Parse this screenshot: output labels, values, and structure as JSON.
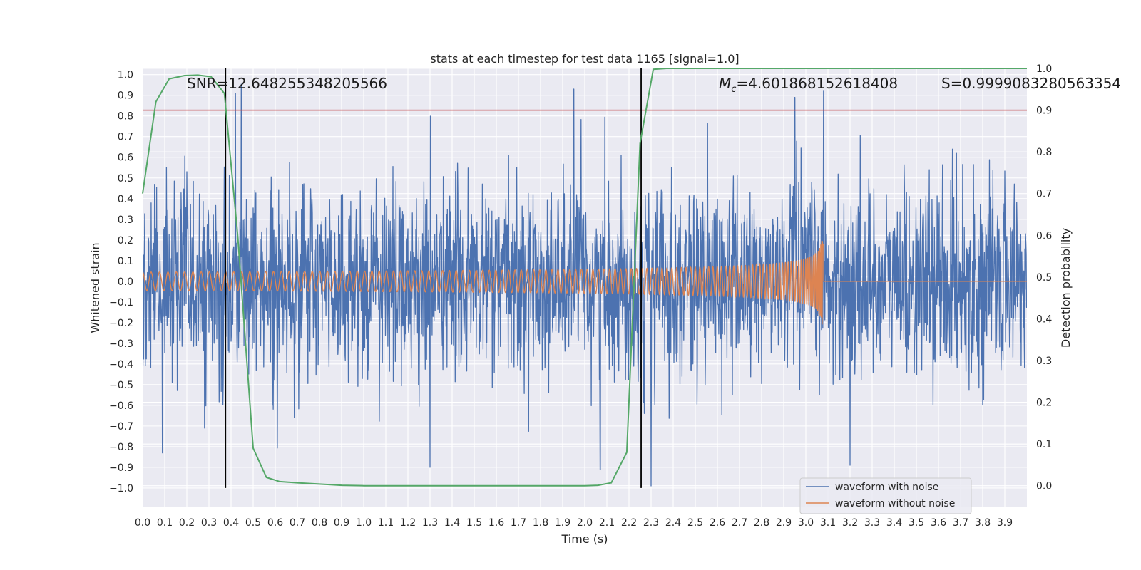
{
  "chart_data": {
    "type": "line",
    "title": "stats at each timestep for test data 1165 [signal=1.0]",
    "xlabel": "Time (s)",
    "ylabel": "Whitened strain",
    "y2label": "Detection probability",
    "xlim": [
      0.0,
      4.0
    ],
    "ylim": [
      -1.09,
      1.03
    ],
    "y2lim": [
      -0.05,
      1.0
    ],
    "x_ticks": [
      0.0,
      0.1,
      0.2,
      0.3,
      0.4,
      0.5,
      0.6,
      0.7,
      0.8,
      0.9,
      1.0,
      1.1,
      1.2,
      1.3,
      1.4,
      1.5,
      1.6,
      1.7,
      1.8,
      1.9,
      2.0,
      2.1,
      2.2,
      2.3,
      2.4,
      2.5,
      2.6,
      2.7,
      2.8,
      2.9,
      3.0,
      3.1,
      3.2,
      3.3,
      3.4,
      3.5,
      3.6,
      3.7,
      3.8,
      3.9
    ],
    "x_tick_labels": [
      "0.0",
      "0.1",
      "0.2",
      "0.3",
      "0.4",
      "0.5",
      "0.6",
      "0.7",
      "0.8",
      "0.9",
      "1.0",
      "1.1",
      "1.2",
      "1.3",
      "1.4",
      "1.5",
      "1.6",
      "1.7",
      "1.8",
      "1.9",
      "2.0",
      "2.1",
      "2.2",
      "2.3",
      "2.4",
      "2.5",
      "2.6",
      "2.7",
      "2.8",
      "2.9",
      "3.0",
      "3.1",
      "3.2",
      "3.3",
      "3.4",
      "3.5",
      "3.6",
      "3.7",
      "3.8",
      "3.9"
    ],
    "y_ticks": [
      1.0,
      0.9,
      0.8,
      0.7,
      0.6,
      0.5,
      0.4,
      0.3,
      0.2,
      0.1,
      0.0,
      -0.1,
      -0.2,
      -0.3,
      -0.4,
      -0.5,
      -0.6,
      -0.7,
      -0.8,
      -0.9,
      -1.0
    ],
    "y_tick_labels": [
      "1.0",
      "0.9",
      "0.8",
      "0.7",
      "0.6",
      "0.5",
      "0.4",
      "0.3",
      "0.2",
      "0.1",
      "0.0",
      "−0.1",
      "−0.2",
      "−0.3",
      "−0.4",
      "−0.5",
      "−0.6",
      "−0.7",
      "−0.8",
      "−0.9",
      "−1.0"
    ],
    "y2_ticks": [
      1.0,
      0.9,
      0.8,
      0.7,
      0.6,
      0.5,
      0.4,
      0.3,
      0.2,
      0.1,
      0.0
    ],
    "y2_tick_labels": [
      "1.0",
      "0.9",
      "0.8",
      "0.7",
      "0.6",
      "0.5",
      "0.4",
      "0.3",
      "0.2",
      "0.1",
      "0.0"
    ],
    "grid": true,
    "series": [
      {
        "name": "waveform with noise",
        "axis": "left",
        "color": "#4c72b0",
        "noise_amplitude": 0.3,
        "peaks": [
          [
            0.09,
            -0.83
          ],
          [
            0.2,
            0.53
          ],
          [
            0.28,
            -0.71
          ],
          [
            0.42,
            0.91
          ],
          [
            1.3,
            -0.9
          ],
          [
            1.95,
            0.93
          ],
          [
            2.07,
            -0.91
          ],
          [
            2.3,
            -0.99
          ],
          [
            2.95,
            0.89
          ],
          [
            3.08,
            0.92
          ],
          [
            3.2,
            -0.89
          ]
        ]
      },
      {
        "name": "waveform without noise",
        "axis": "left",
        "color": "#dd8452",
        "start_amplitude": 0.045,
        "merger_time": 3.08,
        "merger_amplitude": 0.32,
        "post_merger_value": 0.0
      },
      {
        "name": "detection probability",
        "axis": "right",
        "color": "#55a868",
        "x": [
          0.0,
          0.06,
          0.12,
          0.19,
          0.25,
          0.31,
          0.37,
          0.43,
          0.5,
          0.56,
          0.62,
          0.7,
          0.8,
          0.9,
          1.0,
          1.2,
          1.4,
          1.6,
          1.8,
          2.0,
          2.06,
          2.12,
          2.19,
          2.25,
          2.31,
          2.37,
          2.5,
          3.0,
          3.5,
          4.0
        ],
        "y": [
          0.7,
          0.92,
          0.975,
          0.983,
          0.984,
          0.98,
          0.94,
          0.6,
          0.09,
          0.02,
          0.01,
          0.007,
          0.004,
          0.001,
          0.0,
          0.0,
          0.0,
          0.0,
          0.0,
          0.0,
          0.001,
          0.007,
          0.08,
          0.82,
          0.998,
          1.0,
          1.0,
          1.0,
          1.0,
          1.0
        ]
      }
    ],
    "threshold": {
      "axis": "right",
      "value": 0.9,
      "color": "#c44e52"
    },
    "vlines": [
      0.375,
      2.255
    ],
    "annotations": {
      "snr": "SNR=12.648255348205566",
      "mc_symbol": "M",
      "mc_sub": "c",
      "mc_value": "=4.601868152618408",
      "s": "S=0.9999083280563354"
    },
    "legend": {
      "position": "lower-right",
      "entries": [
        "waveform with noise",
        "waveform without noise"
      ]
    }
  }
}
